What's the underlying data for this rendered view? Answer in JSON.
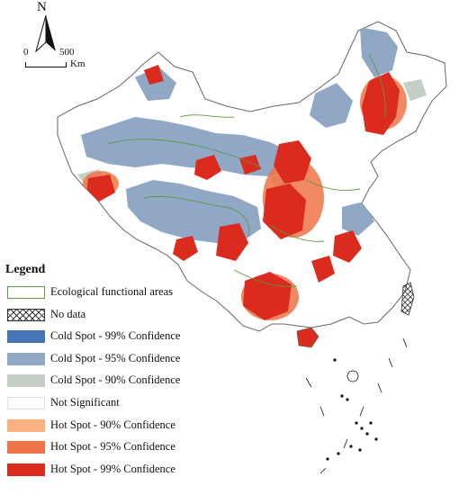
{
  "north": {
    "label": "N"
  },
  "scale": {
    "zero": "0",
    "max": "500",
    "unit": "Km"
  },
  "legend": {
    "title": "Legend",
    "items": [
      {
        "key": "eco",
        "label": "Ecological functional areas",
        "fill": "#ffffff",
        "stroke": "#5a9a3c"
      },
      {
        "key": "nodata",
        "label": "No data",
        "fill": "hatch",
        "stroke": "#333333"
      },
      {
        "key": "cold99",
        "label": "Cold Spot - 99% Confidence",
        "fill": "#4575b4",
        "stroke": "#4575b4"
      },
      {
        "key": "cold95",
        "label": "Cold Spot - 95% Confidence",
        "fill": "#91a7c6",
        "stroke": "#91a7c6"
      },
      {
        "key": "cold90",
        "label": "Cold Spot - 90% Confidence",
        "fill": "#c5cfc5",
        "stroke": "#c5cfc5"
      },
      {
        "key": "ns",
        "label": "Not Significant",
        "fill": "#ffffff",
        "stroke": "#dddddd"
      },
      {
        "key": "hot90",
        "label": "Hot Spot - 90% Confidence",
        "fill": "#f9b27f",
        "stroke": "#f9b27f"
      },
      {
        "key": "hot95",
        "label": "Hot Spot - 95% Confidence",
        "fill": "#ee7448",
        "stroke": "#ee7448"
      },
      {
        "key": "hot99",
        "label": "Hot Spot - 99% Confidence",
        "fill": "#db2b1e",
        "stroke": "#db2b1e"
      }
    ]
  },
  "colors": {
    "outline": "#666666",
    "eco_line": "#5a9a3c",
    "cold95": "#91a7c6",
    "cold90": "#c5cfc5",
    "hot99": "#db2b1e",
    "hot95": "#ee7448"
  }
}
